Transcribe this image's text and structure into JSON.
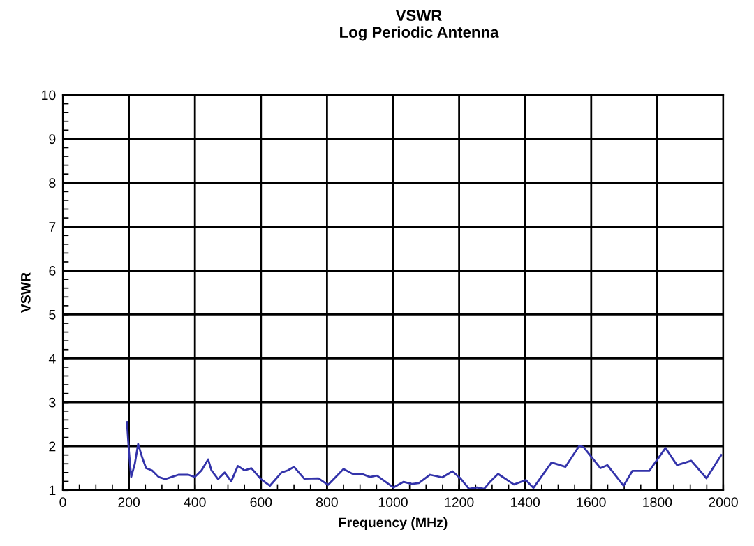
{
  "chart_data": {
    "type": "line",
    "title": "VSWR",
    "subtitle": "Log Periodic Antenna",
    "xlabel": "Frequency (MHz)",
    "ylabel": "VSWR",
    "xlim": [
      0,
      2000
    ],
    "xticks": [
      0,
      200,
      400,
      600,
      800,
      1000,
      1200,
      1400,
      1600,
      1800,
      2000
    ],
    "ylim": [
      1,
      10
    ],
    "yticks": [
      1,
      2,
      3,
      4,
      5,
      6,
      7,
      8,
      9,
      10
    ],
    "grid": true,
    "marker": "none",
    "line_style": "solid",
    "series": [
      {
        "color": "#3333aa",
        "x": [
          194,
          200,
          207,
          218,
          228,
          240,
          252,
          270,
          290,
          310,
          330,
          350,
          380,
          400,
          420,
          440,
          450,
          470,
          490,
          510,
          530,
          550,
          571,
          600,
          627,
          662,
          681,
          700,
          731,
          774,
          803,
          850,
          880,
          909,
          930,
          951,
          1001,
          1032,
          1057,
          1078,
          1112,
          1149,
          1180,
          1205,
          1230,
          1254,
          1276,
          1295,
          1318,
          1366,
          1402,
          1425,
          1480,
          1522,
          1564,
          1577,
          1628,
          1649,
          1698,
          1725,
          1776,
          1825,
          1860,
          1903,
          1949,
          1994
        ],
        "values": [
          2.55,
          1.9,
          1.3,
          1.6,
          2.05,
          1.75,
          1.5,
          1.45,
          1.3,
          1.25,
          1.3,
          1.35,
          1.35,
          1.3,
          1.45,
          1.7,
          1.45,
          1.25,
          1.4,
          1.2,
          1.55,
          1.45,
          1.5,
          1.25,
          1.1,
          1.4,
          1.45,
          1.53,
          1.26,
          1.27,
          1.12,
          1.48,
          1.36,
          1.36,
          1.3,
          1.33,
          1.06,
          1.19,
          1.14,
          1.16,
          1.35,
          1.29,
          1.43,
          1.26,
          1.03,
          1.06,
          1.03,
          1.2,
          1.37,
          1.13,
          1.23,
          1.05,
          1.63,
          1.53,
          2.01,
          1.98,
          1.5,
          1.57,
          1.1,
          1.44,
          1.44,
          1.96,
          1.57,
          1.67,
          1.27,
          1.8
        ]
      }
    ]
  }
}
